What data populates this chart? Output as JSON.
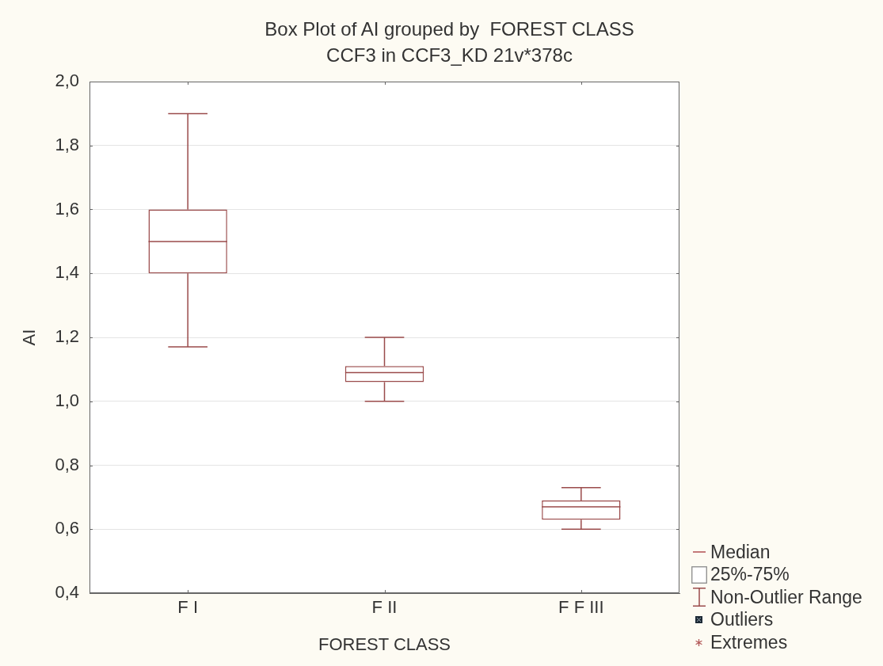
{
  "chart_data": {
    "type": "box",
    "title": "Box Plot of AI grouped by  FOREST CLASS",
    "subtitle": "CCF3 in CCF3_KD 21v*378c",
    "xlabel": "FOREST CLASS",
    "ylabel": "AI",
    "categories": [
      "F I",
      "F II",
      "F F III"
    ],
    "boxes": [
      {
        "low": 1.17,
        "q1": 1.4,
        "median": 1.5,
        "q3": 1.6,
        "high": 1.9
      },
      {
        "low": 1.0,
        "q1": 1.06,
        "median": 1.09,
        "q3": 1.11,
        "high": 1.2
      },
      {
        "low": 0.6,
        "q1": 0.63,
        "median": 0.67,
        "q3": 0.69,
        "high": 0.73
      }
    ],
    "color": "#9a4b4b",
    "ylim": [
      0.4,
      2.0
    ],
    "yticks": [
      {
        "value": 0.4,
        "label": "0,4"
      },
      {
        "value": 0.6,
        "label": "0,6"
      },
      {
        "value": 0.8,
        "label": "0,8"
      },
      {
        "value": 1.0,
        "label": "1,0"
      },
      {
        "value": 1.2,
        "label": "1,2"
      },
      {
        "value": 1.4,
        "label": "1,4"
      },
      {
        "value": 1.6,
        "label": "1,6"
      },
      {
        "value": 1.8,
        "label": "1,8"
      },
      {
        "value": 2.0,
        "label": "2,0"
      }
    ],
    "grid": "y",
    "annotations": [
      "Median",
      "25%-75%",
      "Non-Outlier Range",
      "Outliers",
      "Extremes"
    ]
  }
}
